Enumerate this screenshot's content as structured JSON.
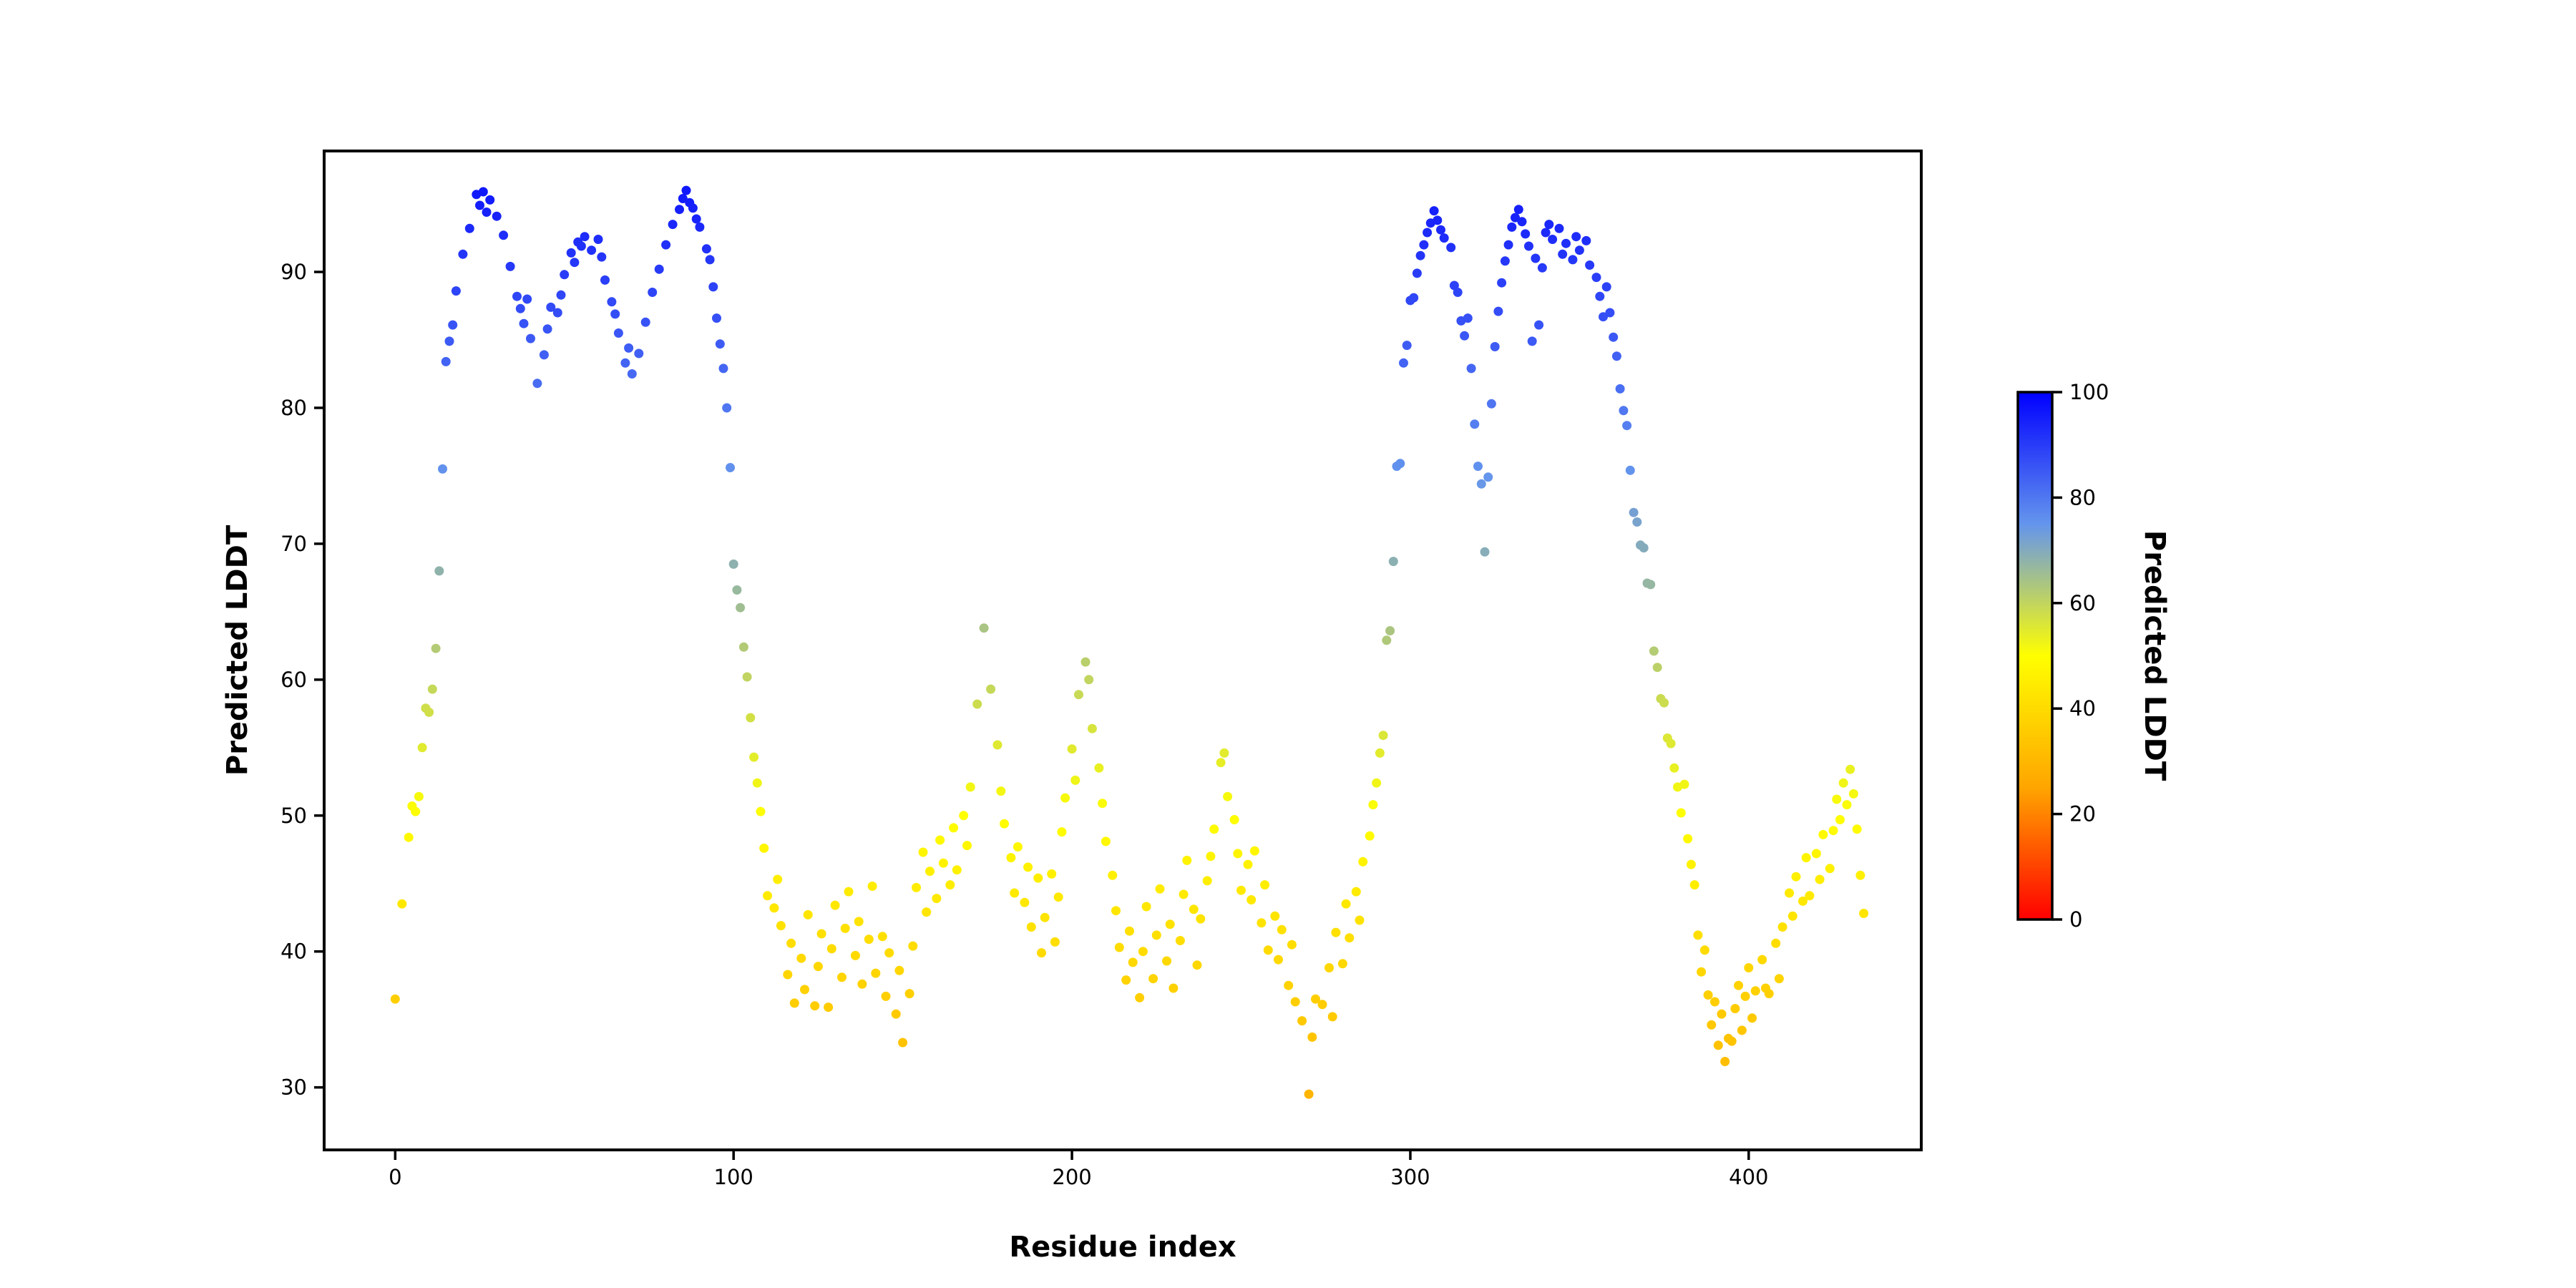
{
  "figure": {
    "background_color": "#ffffff",
    "text_color": "#000000"
  },
  "chart_data": {
    "type": "scatter",
    "title": "",
    "xlabel": "Residue index",
    "ylabel": "Predicted LDDT",
    "xlim": [
      -21,
      451
    ],
    "ylim": [
      25.4,
      98.9
    ],
    "x_ticks": [
      0,
      100,
      200,
      300,
      400
    ],
    "y_ticks": [
      30,
      40,
      50,
      60,
      70,
      80,
      90
    ],
    "grid": false,
    "legend": "none",
    "marker_radius_px": 6.5,
    "colormap": {
      "name": "red-orange-yellow-cornflowerblue-blue",
      "stops": [
        {
          "t": 0.0,
          "rgb": [
            255,
            0,
            0
          ],
          "hex": "#ff0000"
        },
        {
          "t": 0.25,
          "rgb": [
            255,
            165,
            0
          ],
          "hex": "#ffa500"
        },
        {
          "t": 0.5,
          "rgb": [
            255,
            255,
            0
          ],
          "hex": "#ffff00"
        },
        {
          "t": 0.75,
          "rgb": [
            100,
            149,
            237
          ],
          "hex": "#6495ed"
        },
        {
          "t": 1.0,
          "rgb": [
            0,
            0,
            255
          ],
          "hex": "#0000ff"
        }
      ]
    },
    "colorbar": {
      "label": "Predicted LDDT",
      "vmin": 0,
      "vmax": 100,
      "ticks": [
        0,
        20,
        40,
        60,
        80,
        100
      ]
    },
    "points": [
      [
        0,
        36.5
      ],
      [
        2,
        43.5
      ],
      [
        4,
        48.4
      ],
      [
        5,
        50.7
      ],
      [
        6,
        50.3
      ],
      [
        7,
        51.4
      ],
      [
        8,
        55.0
      ],
      [
        9,
        57.9
      ],
      [
        10,
        57.6
      ],
      [
        11,
        59.3
      ],
      [
        12,
        62.3
      ],
      [
        13,
        68.0
      ],
      [
        14,
        75.5
      ],
      [
        15,
        83.4
      ],
      [
        16,
        84.9
      ],
      [
        17,
        86.1
      ],
      [
        18,
        88.6
      ],
      [
        20,
        91.3
      ],
      [
        22,
        93.2
      ],
      [
        24,
        95.7
      ],
      [
        25,
        94.9
      ],
      [
        26,
        95.9
      ],
      [
        27,
        94.4
      ],
      [
        28,
        95.3
      ],
      [
        30,
        94.1
      ],
      [
        32,
        92.7
      ],
      [
        34,
        90.4
      ],
      [
        36,
        88.2
      ],
      [
        37,
        87.3
      ],
      [
        38,
        86.2
      ],
      [
        39,
        88.0
      ],
      [
        40,
        85.1
      ],
      [
        42,
        81.8
      ],
      [
        44,
        83.9
      ],
      [
        45,
        85.8
      ],
      [
        46,
        87.4
      ],
      [
        48,
        87.0
      ],
      [
        49,
        88.3
      ],
      [
        50,
        89.8
      ],
      [
        52,
        91.4
      ],
      [
        53,
        90.7
      ],
      [
        54,
        92.2
      ],
      [
        55,
        91.9
      ],
      [
        56,
        92.6
      ],
      [
        58,
        91.6
      ],
      [
        60,
        92.4
      ],
      [
        61,
        91.1
      ],
      [
        62,
        89.4
      ],
      [
        64,
        87.8
      ],
      [
        65,
        86.9
      ],
      [
        66,
        85.5
      ],
      [
        68,
        83.3
      ],
      [
        69,
        84.4
      ],
      [
        70,
        82.5
      ],
      [
        72,
        84.0
      ],
      [
        74,
        86.3
      ],
      [
        76,
        88.5
      ],
      [
        78,
        90.2
      ],
      [
        80,
        92.0
      ],
      [
        82,
        93.5
      ],
      [
        84,
        94.6
      ],
      [
        85,
        95.4
      ],
      [
        86,
        96.0
      ],
      [
        87,
        95.1
      ],
      [
        88,
        94.7
      ],
      [
        89,
        93.9
      ],
      [
        90,
        93.3
      ],
      [
        92,
        91.7
      ],
      [
        93,
        90.9
      ],
      [
        94,
        88.9
      ],
      [
        95,
        86.6
      ],
      [
        96,
        84.7
      ],
      [
        97,
        82.9
      ],
      [
        98,
        80.0
      ],
      [
        99,
        75.6
      ],
      [
        100,
        68.5
      ],
      [
        101,
        66.6
      ],
      [
        102,
        65.3
      ],
      [
        103,
        62.4
      ],
      [
        104,
        60.2
      ],
      [
        105,
        57.2
      ],
      [
        106,
        54.3
      ],
      [
        107,
        52.4
      ],
      [
        108,
        50.3
      ],
      [
        109,
        47.6
      ],
      [
        110,
        44.1
      ],
      [
        112,
        43.2
      ],
      [
        113,
        45.3
      ],
      [
        114,
        41.9
      ],
      [
        116,
        38.3
      ],
      [
        117,
        40.6
      ],
      [
        118,
        36.2
      ],
      [
        120,
        39.5
      ],
      [
        121,
        37.2
      ],
      [
        122,
        42.7
      ],
      [
        124,
        36.0
      ],
      [
        125,
        38.9
      ],
      [
        126,
        41.3
      ],
      [
        128,
        35.9
      ],
      [
        129,
        40.2
      ],
      [
        130,
        43.4
      ],
      [
        132,
        38.1
      ],
      [
        133,
        41.7
      ],
      [
        134,
        44.4
      ],
      [
        136,
        39.7
      ],
      [
        137,
        42.2
      ],
      [
        138,
        37.6
      ],
      [
        140,
        40.9
      ],
      [
        141,
        44.8
      ],
      [
        142,
        38.4
      ],
      [
        144,
        41.1
      ],
      [
        145,
        36.7
      ],
      [
        146,
        39.9
      ],
      [
        148,
        35.4
      ],
      [
        149,
        38.6
      ],
      [
        150,
        33.3
      ],
      [
        152,
        36.9
      ],
      [
        153,
        40.4
      ],
      [
        154,
        44.7
      ],
      [
        156,
        47.3
      ],
      [
        157,
        42.9
      ],
      [
        158,
        45.9
      ],
      [
        160,
        43.9
      ],
      [
        161,
        48.2
      ],
      [
        162,
        46.5
      ],
      [
        164,
        44.9
      ],
      [
        165,
        49.1
      ],
      [
        166,
        46.0
      ],
      [
        168,
        50.0
      ],
      [
        169,
        47.8
      ],
      [
        170,
        52.1
      ],
      [
        172,
        58.2
      ],
      [
        174,
        63.8
      ],
      [
        176,
        59.3
      ],
      [
        178,
        55.2
      ],
      [
        179,
        51.8
      ],
      [
        180,
        49.4
      ],
      [
        182,
        46.9
      ],
      [
        183,
        44.3
      ],
      [
        184,
        47.7
      ],
      [
        186,
        43.6
      ],
      [
        187,
        46.2
      ],
      [
        188,
        41.8
      ],
      [
        190,
        45.4
      ],
      [
        191,
        39.9
      ],
      [
        192,
        42.5
      ],
      [
        194,
        45.7
      ],
      [
        195,
        40.7
      ],
      [
        196,
        44.0
      ],
      [
        197,
        48.8
      ],
      [
        198,
        51.3
      ],
      [
        200,
        54.9
      ],
      [
        201,
        52.6
      ],
      [
        202,
        58.9
      ],
      [
        204,
        61.3
      ],
      [
        205,
        60.0
      ],
      [
        206,
        56.4
      ],
      [
        208,
        53.5
      ],
      [
        209,
        50.9
      ],
      [
        210,
        48.1
      ],
      [
        212,
        45.6
      ],
      [
        213,
        43.0
      ],
      [
        214,
        40.3
      ],
      [
        216,
        37.9
      ],
      [
        217,
        41.5
      ],
      [
        218,
        39.2
      ],
      [
        220,
        36.6
      ],
      [
        221,
        40.0
      ],
      [
        222,
        43.3
      ],
      [
        224,
        38.0
      ],
      [
        225,
        41.2
      ],
      [
        226,
        44.6
      ],
      [
        228,
        39.3
      ],
      [
        229,
        42.0
      ],
      [
        230,
        37.3
      ],
      [
        232,
        40.8
      ],
      [
        233,
        44.2
      ],
      [
        234,
        46.7
      ],
      [
        236,
        43.1
      ],
      [
        237,
        39.0
      ],
      [
        238,
        42.4
      ],
      [
        240,
        45.2
      ],
      [
        241,
        47.0
      ],
      [
        242,
        49.0
      ],
      [
        244,
        53.9
      ],
      [
        245,
        54.6
      ],
      [
        246,
        51.4
      ],
      [
        248,
        49.7
      ],
      [
        249,
        47.2
      ],
      [
        250,
        44.5
      ],
      [
        252,
        46.4
      ],
      [
        253,
        43.8
      ],
      [
        254,
        47.4
      ],
      [
        256,
        42.1
      ],
      [
        257,
        44.9
      ],
      [
        258,
        40.1
      ],
      [
        260,
        42.6
      ],
      [
        261,
        39.4
      ],
      [
        262,
        41.6
      ],
      [
        264,
        37.5
      ],
      [
        265,
        40.5
      ],
      [
        266,
        36.3
      ],
      [
        268,
        34.9
      ],
      [
        270,
        29.5
      ],
      [
        271,
        33.7
      ],
      [
        272,
        36.5
      ],
      [
        274,
        36.1
      ],
      [
        276,
        38.8
      ],
      [
        277,
        35.2
      ],
      [
        278,
        41.4
      ],
      [
        280,
        39.1
      ],
      [
        281,
        43.5
      ],
      [
        282,
        41.0
      ],
      [
        284,
        44.4
      ],
      [
        285,
        42.3
      ],
      [
        286,
        46.6
      ],
      [
        288,
        48.5
      ],
      [
        289,
        50.8
      ],
      [
        290,
        52.4
      ],
      [
        291,
        54.6
      ],
      [
        292,
        55.9
      ],
      [
        293,
        62.9
      ],
      [
        294,
        63.6
      ],
      [
        295,
        68.7
      ],
      [
        296,
        75.7
      ],
      [
        297,
        75.9
      ],
      [
        298,
        83.3
      ],
      [
        299,
        84.6
      ],
      [
        300,
        87.9
      ],
      [
        301,
        88.1
      ],
      [
        302,
        89.9
      ],
      [
        303,
        91.2
      ],
      [
        304,
        92.0
      ],
      [
        305,
        92.9
      ],
      [
        306,
        93.6
      ],
      [
        307,
        94.5
      ],
      [
        308,
        93.8
      ],
      [
        309,
        93.1
      ],
      [
        310,
        92.5
      ],
      [
        312,
        91.8
      ],
      [
        313,
        89.0
      ],
      [
        314,
        88.5
      ],
      [
        315,
        86.4
      ],
      [
        316,
        85.3
      ],
      [
        317,
        86.6
      ],
      [
        318,
        82.9
      ],
      [
        319,
        78.8
      ],
      [
        320,
        75.7
      ],
      [
        321,
        74.4
      ],
      [
        322,
        69.4
      ],
      [
        323,
        74.9
      ],
      [
        324,
        80.3
      ],
      [
        325,
        84.5
      ],
      [
        326,
        87.1
      ],
      [
        327,
        89.2
      ],
      [
        328,
        90.8
      ],
      [
        329,
        92.0
      ],
      [
        330,
        93.3
      ],
      [
        331,
        94.0
      ],
      [
        332,
        94.6
      ],
      [
        333,
        93.7
      ],
      [
        334,
        92.8
      ],
      [
        335,
        91.9
      ],
      [
        336,
        84.9
      ],
      [
        337,
        91.0
      ],
      [
        338,
        86.1
      ],
      [
        339,
        90.3
      ],
      [
        340,
        92.9
      ],
      [
        341,
        93.5
      ],
      [
        342,
        92.4
      ],
      [
        344,
        93.2
      ],
      [
        345,
        91.3
      ],
      [
        346,
        92.1
      ],
      [
        348,
        90.9
      ],
      [
        349,
        92.6
      ],
      [
        350,
        91.6
      ],
      [
        352,
        92.3
      ],
      [
        353,
        90.5
      ],
      [
        355,
        89.6
      ],
      [
        356,
        88.2
      ],
      [
        357,
        86.7
      ],
      [
        358,
        88.9
      ],
      [
        359,
        87.0
      ],
      [
        360,
        85.2
      ],
      [
        361,
        83.8
      ],
      [
        362,
        81.4
      ],
      [
        363,
        79.8
      ],
      [
        364,
        78.7
      ],
      [
        365,
        75.4
      ],
      [
        366,
        72.3
      ],
      [
        367,
        71.6
      ],
      [
        368,
        69.9
      ],
      [
        369,
        69.7
      ],
      [
        370,
        67.1
      ],
      [
        371,
        67.0
      ],
      [
        372,
        62.1
      ],
      [
        373,
        60.9
      ],
      [
        374,
        58.6
      ],
      [
        375,
        58.3
      ],
      [
        376,
        55.7
      ],
      [
        377,
        55.3
      ],
      [
        378,
        53.5
      ],
      [
        379,
        52.1
      ],
      [
        380,
        50.2
      ],
      [
        381,
        52.3
      ],
      [
        382,
        48.3
      ],
      [
        383,
        46.4
      ],
      [
        384,
        44.9
      ],
      [
        385,
        41.2
      ],
      [
        386,
        38.5
      ],
      [
        387,
        40.1
      ],
      [
        388,
        36.8
      ],
      [
        389,
        34.6
      ],
      [
        390,
        36.3
      ],
      [
        391,
        33.1
      ],
      [
        392,
        35.4
      ],
      [
        393,
        31.9
      ],
      [
        394,
        33.6
      ],
      [
        395,
        33.4
      ],
      [
        396,
        35.8
      ],
      [
        397,
        37.5
      ],
      [
        398,
        34.2
      ],
      [
        399,
        36.7
      ],
      [
        400,
        38.8
      ],
      [
        401,
        35.1
      ],
      [
        402,
        37.1
      ],
      [
        404,
        39.4
      ],
      [
        405,
        37.3
      ],
      [
        406,
        36.9
      ],
      [
        408,
        40.6
      ],
      [
        409,
        38.0
      ],
      [
        410,
        41.8
      ],
      [
        412,
        44.3
      ],
      [
        413,
        42.6
      ],
      [
        414,
        45.5
      ],
      [
        416,
        43.7
      ],
      [
        417,
        46.9
      ],
      [
        418,
        44.1
      ],
      [
        420,
        47.2
      ],
      [
        421,
        45.3
      ],
      [
        422,
        48.6
      ],
      [
        424,
        46.1
      ],
      [
        425,
        48.9
      ],
      [
        426,
        51.2
      ],
      [
        427,
        49.7
      ],
      [
        428,
        52.4
      ],
      [
        429,
        50.8
      ],
      [
        430,
        53.4
      ],
      [
        431,
        51.6
      ],
      [
        432,
        49.0
      ],
      [
        433,
        45.6
      ],
      [
        434,
        42.8
      ]
    ]
  }
}
